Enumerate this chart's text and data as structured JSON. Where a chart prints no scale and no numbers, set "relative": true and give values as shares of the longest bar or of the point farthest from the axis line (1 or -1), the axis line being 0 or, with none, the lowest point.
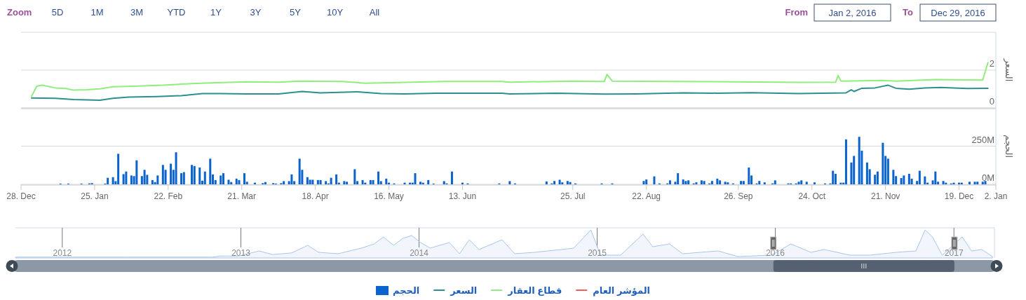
{
  "chart_data": [
    {
      "type": "line",
      "ylabel": "السعر",
      "xlim": [
        "2015-12-28",
        "2017-01-02"
      ],
      "ylim": [
        0,
        4
      ],
      "yticks": [
        0,
        2,
        {
          "value": 4,
          "label": null
        }
      ],
      "tick_labels": "y",
      "grid": "y",
      "legend": "bottom",
      "annotations": [
        "Zoom",
        "5D",
        "1M",
        "3M",
        "YTD",
        "1Y",
        "3Y",
        "5Y",
        "10Y",
        "All",
        "From",
        "Jan 2, 2016",
        "To",
        "Dec 29, 2016"
      ],
      "series": [
        {
          "name": "السعر",
          "color": "#2b908f",
          "x": [
            "2016-01-01",
            "2016-01-10",
            "2016-01-17",
            "2016-01-27",
            "2016-02-01",
            "2016-02-07",
            "2016-02-18",
            "2016-02-27",
            "2016-03-06",
            "2016-03-13",
            "2016-03-23",
            "2016-04-04",
            "2016-04-13",
            "2016-04-20",
            "2016-05-04",
            "2016-05-13",
            "2016-05-22",
            "2016-06-03",
            "2016-06-28",
            "2016-07-01",
            "2016-07-19",
            "2016-08-06",
            "2016-08-18",
            "2016-09-05",
            "2016-09-18",
            "2016-10-01",
            "2016-10-19",
            "2016-11-06",
            "2016-11-08",
            "2016-11-09",
            "2016-11-12",
            "2016-11-17",
            "2016-11-22",
            "2016-11-25",
            "2016-11-30",
            "2016-12-06",
            "2016-12-12",
            "2016-12-22",
            "2016-12-30"
          ],
          "values": [
            0.53,
            0.51,
            0.44,
            0.41,
            0.51,
            0.57,
            0.6,
            0.65,
            0.76,
            0.76,
            0.74,
            0.74,
            0.87,
            0.8,
            0.85,
            0.76,
            0.74,
            0.78,
            0.78,
            0.74,
            0.78,
            0.73,
            0.74,
            0.8,
            0.78,
            0.81,
            0.76,
            0.8,
            0.96,
            0.87,
            1.04,
            1.06,
            1.2,
            1.04,
            0.99,
            1.06,
            1.08,
            1.03,
            1.04
          ]
        },
        {
          "name": "قطاع العقار",
          "color": "#90ee7e",
          "x": [
            "2016-01-01",
            "2016-01-03",
            "2016-01-05",
            "2016-01-10",
            "2016-01-14",
            "2016-01-17",
            "2016-01-22",
            "2016-01-27",
            "2016-02-01",
            "2016-02-09",
            "2016-02-20",
            "2016-03-02",
            "2016-03-11",
            "2016-03-23",
            "2016-04-04",
            "2016-04-12",
            "2016-04-28",
            "2016-05-07",
            "2016-05-22",
            "2016-06-06",
            "2016-06-28",
            "2016-07-01",
            "2016-07-25",
            "2016-08-04",
            "2016-08-06",
            "2016-08-07",
            "2016-08-09",
            "2016-08-31",
            "2016-09-24",
            "2016-10-19",
            "2016-11-02",
            "2016-11-03",
            "2016-11-04",
            "2016-11-20",
            "2016-11-25",
            "2016-12-10",
            "2016-12-28",
            "2016-12-30"
          ],
          "values": [
            0.62,
            1.15,
            1.2,
            1.06,
            1.03,
            0.94,
            0.96,
            1.01,
            1.12,
            1.15,
            1.2,
            1.29,
            1.33,
            1.38,
            1.36,
            1.42,
            1.4,
            1.31,
            1.35,
            1.4,
            1.4,
            1.36,
            1.42,
            1.4,
            1.4,
            1.77,
            1.42,
            1.4,
            1.38,
            1.35,
            1.36,
            1.72,
            1.42,
            1.45,
            1.42,
            1.5,
            1.47,
            2.4
          ]
        },
        {
          "name": "المؤشر العام",
          "color": "#f45b5b"
        }
      ]
    },
    {
      "type": "bar",
      "ylabel": "الحجم",
      "xlim": [
        "2015-12-28",
        "2017-01-02"
      ],
      "ylim": [
        0,
        500
      ],
      "yticks": [
        {
          "value": 0,
          "label": "0M"
        },
        {
          "value": 250,
          "label": "250M"
        },
        {
          "value": 500,
          "label": null
        }
      ],
      "xticks": [
        {
          "value": "2015-12-28",
          "label": "28. Dec"
        },
        {
          "value": "2016-01-25",
          "label": "25. Jan"
        },
        {
          "value": "2016-02-22",
          "label": "22. Feb"
        },
        {
          "value": "2016-03-21",
          "label": "21. Mar"
        },
        {
          "value": "2016-04-18",
          "label": "18. Apr"
        },
        {
          "value": "2016-05-16",
          "label": "16. May"
        },
        {
          "value": "2016-06-13",
          "label": "13. Jun"
        },
        {
          "value": "2016-07-25",
          "label": "25. Jul"
        },
        {
          "value": "2016-08-22",
          "label": "22. Aug"
        },
        {
          "value": "2016-09-26",
          "label": "26. Sep"
        },
        {
          "value": "2016-10-24",
          "label": "24. Oct"
        },
        {
          "value": "2016-11-21",
          "label": "21. Nov"
        },
        {
          "value": "2016-12-19",
          "label": "19. Dec"
        },
        {
          "value": "2017-01-02",
          "label": "2. Jan"
        }
      ],
      "grid": "y",
      "legend": "bottom",
      "x": [
        "2016-01-12",
        "2016-01-15",
        "2016-01-20",
        "2016-01-23",
        "2016-01-24",
        "2016-01-29",
        "2016-01-30",
        "2016-02-01",
        "2016-02-02",
        "2016-02-03",
        "2016-02-05",
        "2016-02-06",
        "2016-02-08",
        "2016-02-09",
        "2016-02-10",
        "2016-02-12",
        "2016-02-13",
        "2016-02-14",
        "2016-02-16",
        "2016-02-17",
        "2016-02-18",
        "2016-02-20",
        "2016-02-21",
        "2016-02-23",
        "2016-02-24",
        "2016-02-25",
        "2016-02-27",
        "2016-02-28",
        "2016-03-02",
        "2016-03-03",
        "2016-03-05",
        "2016-03-06",
        "2016-03-07",
        "2016-03-09",
        "2016-03-10",
        "2016-03-11",
        "2016-03-13",
        "2016-03-14",
        "2016-03-16",
        "2016-03-17",
        "2016-03-19",
        "2016-03-20",
        "2016-03-22",
        "2016-03-23",
        "2016-03-26",
        "2016-03-29",
        "2016-03-30",
        "2016-04-02",
        "2016-04-03",
        "2016-04-05",
        "2016-04-06",
        "2016-04-08",
        "2016-04-09",
        "2016-04-10",
        "2016-04-12",
        "2016-04-13",
        "2016-04-15",
        "2016-04-16",
        "2016-04-17",
        "2016-04-19",
        "2016-04-20",
        "2016-04-22",
        "2016-04-23",
        "2016-04-24",
        "2016-04-26",
        "2016-04-27",
        "2016-04-29",
        "2016-04-30",
        "2016-05-03",
        "2016-05-04",
        "2016-05-06",
        "2016-05-07",
        "2016-05-09",
        "2016-05-10",
        "2016-05-12",
        "2016-05-13",
        "2016-05-15",
        "2016-05-16",
        "2016-05-18",
        "2016-05-22",
        "2016-05-24",
        "2016-05-25",
        "2016-05-26",
        "2016-05-28",
        "2016-05-29",
        "2016-05-31",
        "2016-06-02",
        "2016-06-06",
        "2016-06-07",
        "2016-06-09",
        "2016-06-13",
        "2016-06-15",
        "2016-06-27",
        "2016-07-01",
        "2016-07-03",
        "2016-07-15",
        "2016-07-17",
        "2016-07-18",
        "2016-07-20",
        "2016-07-21",
        "2016-07-23",
        "2016-07-24",
        "2016-07-26",
        "2016-08-05",
        "2016-08-09",
        "2016-08-21",
        "2016-08-22",
        "2016-08-25",
        "2016-08-27",
        "2016-08-30",
        "2016-08-31",
        "2016-09-02",
        "2016-09-03",
        "2016-09-05",
        "2016-09-06",
        "2016-09-07",
        "2016-09-09",
        "2016-09-10",
        "2016-09-12",
        "2016-09-13",
        "2016-09-15",
        "2016-09-16",
        "2016-09-18",
        "2016-09-19",
        "2016-09-21",
        "2016-09-22",
        "2016-09-24",
        "2016-09-27",
        "2016-09-28",
        "2016-09-30",
        "2016-10-01",
        "2016-10-03",
        "2016-10-04",
        "2016-10-06",
        "2016-10-09",
        "2016-10-10",
        "2016-10-15",
        "2016-10-16",
        "2016-10-18",
        "2016-10-19",
        "2016-10-20",
        "2016-10-22",
        "2016-10-25",
        "2016-10-29",
        "2016-10-31",
        "2016-11-01",
        "2016-11-02",
        "2016-11-04",
        "2016-11-05",
        "2016-11-06",
        "2016-11-08",
        "2016-11-09",
        "2016-11-11",
        "2016-11-12",
        "2016-11-14",
        "2016-11-15",
        "2016-11-17",
        "2016-11-18",
        "2016-11-20",
        "2016-11-21",
        "2016-11-22",
        "2016-11-24",
        "2016-11-25",
        "2016-11-27",
        "2016-11-28",
        "2016-11-30",
        "2016-12-01",
        "2016-12-03",
        "2016-12-04",
        "2016-12-06",
        "2016-12-07",
        "2016-12-09",
        "2016-12-10",
        "2016-12-11",
        "2016-12-13",
        "2016-12-14",
        "2016-12-16",
        "2016-12-17",
        "2016-12-19",
        "2016-12-20",
        "2016-12-23",
        "2016-12-25",
        "2016-12-26",
        "2016-12-28",
        "2016-12-29"
      ],
      "series": [
        {
          "name": "الحجم",
          "color": "#0b63ce",
          "values": [
            5,
            5,
            5,
            6,
            8,
            5,
            43,
            47,
            21,
            200,
            67,
            84,
            58,
            54,
            157,
            54,
            95,
            62,
            28,
            15,
            58,
            127,
            95,
            135,
            95,
            210,
            73,
            80,
            127,
            120,
            110,
            24,
            84,
            168,
            65,
            28,
            58,
            73,
            30,
            15,
            37,
            28,
            73,
            17,
            11,
            8,
            15,
            8,
            5,
            8,
            21,
            21,
            65,
            21,
            168,
            95,
            47,
            30,
            30,
            28,
            28,
            21,
            6,
            43,
            65,
            11,
            21,
            17,
            99,
            21,
            28,
            11,
            28,
            28,
            84,
            21,
            37,
            11,
            6,
            11,
            11,
            11,
            73,
            17,
            11,
            28,
            5,
            21,
            6,
            84,
            11,
            6,
            6,
            21,
            6,
            19,
            6,
            22,
            30,
            13,
            22,
            15,
            6,
            6,
            6,
            22,
            32,
            52,
            6,
            6,
            26,
            17,
            73,
            32,
            22,
            26,
            6,
            13,
            26,
            22,
            6,
            22,
            37,
            26,
            17,
            13,
            6,
            22,
            22,
            110,
            58,
            6,
            22,
            13,
            6,
            26,
            6,
            6,
            6,
            17,
            26,
            17,
            13,
            6,
            6,
            89,
            69,
            11,
            11,
            294,
            143,
            186,
            311,
            220,
            143,
            99,
            63,
            84,
            272,
            186,
            168,
            95,
            54,
            41,
            58,
            69,
            37,
            22,
            89,
            52,
            11,
            26,
            84,
            17,
            22,
            11,
            6,
            11,
            11,
            11,
            17,
            17,
            17,
            17,
            22
          ]
        }
      ]
    },
    {
      "type": "area",
      "relative": true,
      "color": "#a8c5ec",
      "xlim": [
        "2011-09-27",
        "2017-03-25"
      ],
      "xticks": [
        {
          "value": "2012-01-01",
          "label": "2012"
        },
        {
          "value": "2013-01-01",
          "label": "2013"
        },
        {
          "value": "2014-01-01",
          "label": "2014"
        },
        {
          "value": "2015-01-01",
          "label": "2015"
        },
        {
          "value": "2016-01-01",
          "label": "2016"
        },
        {
          "value": "2017-01-01",
          "label": "2017"
        }
      ],
      "tick_labels": "x",
      "grid": "x",
      "x": [
        "2011-09-27",
        "2012-05-15",
        "2012-11-05",
        "2012-11-20",
        "2012-12-28",
        "2013-02-07",
        "2013-03-07",
        "2013-04-15",
        "2013-05-18",
        "2013-06-09",
        "2013-07-19",
        "2013-09-05",
        "2013-10-01",
        "2013-10-20",
        "2013-11-10",
        "2013-11-29",
        "2013-12-17",
        "2014-01-04",
        "2014-01-24",
        "2014-03-04",
        "2014-03-25",
        "2014-04-14",
        "2014-05-04",
        "2014-06-20",
        "2014-07-16",
        "2014-08-26",
        "2014-10-19",
        "2014-11-14",
        "2014-12-19",
        "2015-01-08",
        "2015-02-18",
        "2015-04-05",
        "2015-04-25",
        "2015-05-29",
        "2015-06-25",
        "2015-09-06",
        "2015-10-16",
        "2015-12-24",
        "2016-02-02",
        "2016-03-14",
        "2016-04-10",
        "2016-06-02",
        "2016-07-13",
        "2016-09-05",
        "2016-10-15",
        "2016-11-03",
        "2016-11-18",
        "2016-12-08",
        "2017-01-18",
        "2017-02-06",
        "2017-02-27",
        "2017-03-21"
      ],
      "values": [
        0.03,
        0.03,
        0.03,
        0.07,
        0.07,
        0.25,
        0.12,
        0.18,
        0.45,
        0.2,
        0.15,
        0.35,
        0.5,
        0.75,
        0.45,
        0.7,
        0.8,
        0.55,
        0.35,
        0.55,
        0.15,
        0.65,
        0.3,
        0.65,
        0.15,
        0.2,
        0.3,
        0.35,
        1,
        0.1,
        0.1,
        0.85,
        0.4,
        0.5,
        0.15,
        0.25,
        0.05,
        0.1,
        0.5,
        0.2,
        0.3,
        0.1,
        0.1,
        0.2,
        0.25,
        1,
        0.75,
        0.1,
        0.75,
        0.25,
        0.3,
        0.05
      ]
    }
  ]
}
